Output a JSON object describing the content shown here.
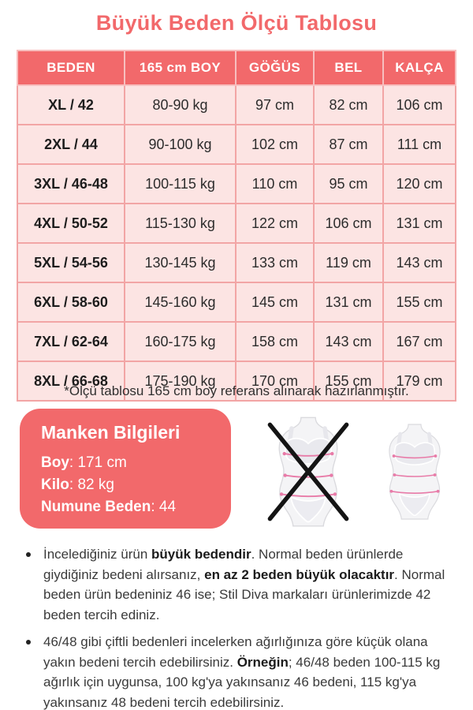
{
  "title": "Büyük Beden Ölçü Tablosu",
  "colors": {
    "accent": "#F2696B",
    "row_bg": "#FCE4E3",
    "grid": "#F2A5A5",
    "header_grid": "#F7BFBF",
    "measure_line": "#E87BA8"
  },
  "table": {
    "columns": [
      "BEDEN",
      "165 cm BOY",
      "GÖĞÜS",
      "BEL",
      "KALÇA"
    ],
    "rows": [
      [
        "XL / 42",
        "80-90 kg",
        "97 cm",
        "82 cm",
        "106 cm"
      ],
      [
        "2XL / 44",
        "90-100 kg",
        "102 cm",
        "87 cm",
        "111 cm"
      ],
      [
        "3XL / 46-48",
        "100-115 kg",
        "110 cm",
        "95 cm",
        "120 cm"
      ],
      [
        "4XL / 50-52",
        "115-130 kg",
        "122 cm",
        "106 cm",
        "131 cm"
      ],
      [
        "5XL / 54-56",
        "130-145 kg",
        "133 cm",
        "119 cm",
        "143 cm"
      ],
      [
        "6XL / 58-60",
        "145-160 kg",
        "145 cm",
        "131 cm",
        "155 cm"
      ],
      [
        "7XL / 62-64",
        "160-175 kg",
        "158 cm",
        "143 cm",
        "167 cm"
      ],
      [
        "8XL / 66-68",
        "175-190 kg",
        "170 cm",
        "155 cm",
        "179 cm"
      ]
    ]
  },
  "footnote": "*Ölçü tablosu 165 cm boy referans alınarak hazırlanmıştır.",
  "model_info": {
    "title": "Manken Bilgileri",
    "lines": [
      {
        "label": "Boy",
        "value": "171 cm"
      },
      {
        "label": "Kilo",
        "value": "82 kg"
      },
      {
        "label": "Numune Beden",
        "value": "44"
      }
    ]
  },
  "figures": {
    "crossed_icon": "wrong-fit-figure-crossed-out",
    "normal_icon": "body-measurement-figure"
  },
  "bullets": [
    {
      "segments": [
        {
          "text": "İncelediğiniz ürün ",
          "bold": false
        },
        {
          "text": "büyük bedendir",
          "bold": true
        },
        {
          "text": ". Normal beden ürünlerde giydiğiniz bedeni alırsanız, ",
          "bold": false
        },
        {
          "text": "en az 2 beden büyük olacaktır",
          "bold": true
        },
        {
          "text": ". Normal beden ürün bedeniniz 46 ise; Stil Diva markaları ürünlerimizde 42 beden tercih ediniz.",
          "bold": false
        }
      ]
    },
    {
      "segments": [
        {
          "text": "46/48 gibi çiftli bedenleri incelerken ağırlığınıza göre küçük olana yakın bedeni tercih edebilirsiniz. ",
          "bold": false
        },
        {
          "text": "Örneğin",
          "bold": true
        },
        {
          "text": "; 46/48 beden 100-115 kg ağırlık için uygunsa, 100 kg'ya yakınsanız 46 bedeni, 115 kg'ya yakınsanız 48 bedeni tercih edebilirsiniz.",
          "bold": false
        }
      ]
    }
  ]
}
